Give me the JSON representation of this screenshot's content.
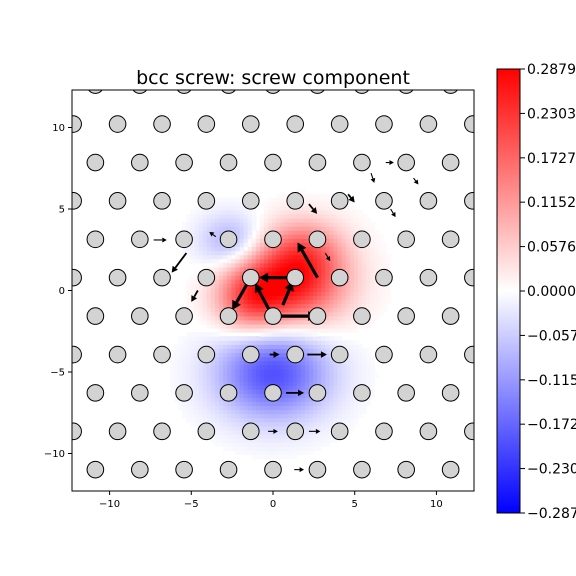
{
  "chart_data": {
    "type": "heatmap",
    "title": "bcc screw: screw component",
    "xlabel": "",
    "ylabel": "",
    "xlim": [
      -12.3,
      12.3
    ],
    "ylim": [
      -12.3,
      12.3
    ],
    "xticks": [
      -10,
      -5,
      0,
      5,
      10
    ],
    "yticks": [
      -10,
      -5,
      0,
      5,
      10
    ],
    "xtick_labels": [
      "−10",
      "−5",
      "0",
      "5",
      "10"
    ],
    "ytick_labels": [
      "−10",
      "−5",
      "0",
      "5",
      "10"
    ],
    "grid": false,
    "colormap": {
      "name": "bwr",
      "min": -0.2879,
      "max": 0.2879,
      "low_color": "#0000ff",
      "mid_color": "#ffffff",
      "high_color": "#ff0000"
    },
    "colorbar_ticks": [
      0.2879,
      0.2303,
      0.1727,
      0.1152,
      0.0576,
      0.0,
      -0.0576,
      -0.1152,
      -0.1727,
      -0.2303,
      -0.2879
    ],
    "colorbar_labels": [
      "0.2879",
      "0.2303",
      "0.1727",
      "0.1152",
      "0.0576",
      "0.0000",
      "−0.0576",
      "−0.1152",
      "−0.1727",
      "−0.2303",
      "−0.2879"
    ],
    "field_lobes": [
      {
        "x": 1.3,
        "y": 0.6,
        "amplitude": 0.25,
        "sigma_x": 2.2,
        "sigma_y": 1.9
      },
      {
        "x": -1.4,
        "y": -0.5,
        "amplitude": 0.17,
        "sigma_x": 1.5,
        "sigma_y": 1.5
      },
      {
        "x": 0.0,
        "y": -5.0,
        "amplitude": -0.2,
        "sigma_x": 2.4,
        "sigma_y": 2.0
      },
      {
        "x": -2.5,
        "y": 3.0,
        "amplitude": -0.1,
        "sigma_x": 1.4,
        "sigma_y": 1.2
      },
      {
        "x": 2.0,
        "y": 2.6,
        "amplitude": 0.08,
        "sigma_x": 1.6,
        "sigma_y": 1.3
      }
    ],
    "atoms": {
      "marker": "circle",
      "fill": "#d3d3d3",
      "edge": "#000000",
      "rows": [
        {
          "y": 12.6,
          "x": [
            -10.87,
            -8.15,
            -5.44,
            -2.72,
            0.0,
            2.72,
            5.44,
            8.15,
            10.87
          ]
        },
        {
          "y": 10.21,
          "x": [
            -12.23,
            -9.51,
            -6.79,
            -4.08,
            -1.36,
            1.36,
            4.08,
            6.79,
            9.51,
            12.23
          ]
        },
        {
          "y": 7.85,
          "x": [
            -10.87,
            -8.15,
            -5.44,
            -2.72,
            0.0,
            2.72,
            5.44,
            8.15,
            10.87
          ]
        },
        {
          "y": 5.5,
          "x": [
            -12.23,
            -9.51,
            -6.79,
            -4.08,
            -1.36,
            1.36,
            4.08,
            6.79,
            9.51,
            12.23
          ]
        },
        {
          "y": 3.14,
          "x": [
            -10.87,
            -8.15,
            -5.44,
            -2.72,
            0.0,
            2.72,
            5.44,
            8.15,
            10.87
          ]
        },
        {
          "y": 0.79,
          "x": [
            -12.23,
            -9.51,
            -6.79,
            -4.08,
            -1.36,
            1.36,
            4.08,
            6.79,
            9.51,
            12.23
          ]
        },
        {
          "y": -1.57,
          "x": [
            -10.87,
            -8.15,
            -5.44,
            -2.72,
            0.0,
            2.72,
            5.44,
            8.15,
            10.87
          ]
        },
        {
          "y": -3.93,
          "x": [
            -12.23,
            -9.51,
            -6.79,
            -4.08,
            -1.36,
            1.36,
            4.08,
            6.79,
            9.51,
            12.23
          ]
        },
        {
          "y": -6.28,
          "x": [
            -10.87,
            -8.15,
            -5.44,
            -2.72,
            0.0,
            2.72,
            5.44,
            8.15,
            10.87
          ]
        },
        {
          "y": -8.64,
          "x": [
            -12.23,
            -9.51,
            -6.79,
            -4.08,
            -1.36,
            1.36,
            4.08,
            6.79,
            9.51,
            12.23
          ]
        },
        {
          "y": -10.99,
          "x": [
            -10.87,
            -8.15,
            -5.44,
            -2.72,
            0.0,
            2.72,
            5.44,
            8.15,
            10.87
          ]
        }
      ]
    },
    "arrows": [
      {
        "x0": 0.0,
        "y0": -1.57,
        "x1": 2.7,
        "y1": -1.57,
        "weight": "heavy"
      },
      {
        "x0": 2.72,
        "y0": 0.79,
        "x1": 1.5,
        "y1": 2.95,
        "weight": "heavy"
      },
      {
        "x0": 1.36,
        "y0": 0.79,
        "x1": -0.85,
        "y1": 0.79,
        "weight": "heavy"
      },
      {
        "x0": -1.36,
        "y0": 0.79,
        "x1": -2.5,
        "y1": -1.2,
        "weight": "heavy"
      },
      {
        "x0": -0.1,
        "y0": -1.45,
        "x1": -1.1,
        "y1": 0.45,
        "weight": "heavy"
      },
      {
        "x0": 0.6,
        "y0": -0.9,
        "x1": 1.2,
        "y1": 0.55,
        "weight": "heavy"
      },
      {
        "x0": 2.2,
        "y0": 5.3,
        "x1": 2.7,
        "y1": 4.7,
        "weight": "medium"
      },
      {
        "x0": 4.6,
        "y0": 5.9,
        "x1": 5.0,
        "y1": 5.4,
        "weight": "medium"
      },
      {
        "x0": -5.3,
        "y0": 2.3,
        "x1": -6.2,
        "y1": 1.1,
        "weight": "medium"
      },
      {
        "x0": -4.6,
        "y0": 0.0,
        "x1": -5.0,
        "y1": -0.7,
        "weight": "medium"
      },
      {
        "x0": -7.3,
        "y0": 3.1,
        "x1": -6.5,
        "y1": 3.1,
        "weight": "light"
      },
      {
        "x0": -0.2,
        "y0": -3.93,
        "x1": 0.4,
        "y1": -3.93,
        "weight": "medium"
      },
      {
        "x0": 2.1,
        "y0": -3.93,
        "x1": 3.3,
        "y1": -3.93,
        "weight": "medium"
      },
      {
        "x0": 0.8,
        "y0": -6.28,
        "x1": 1.9,
        "y1": -6.28,
        "weight": "medium"
      },
      {
        "x0": 2.2,
        "y0": -8.64,
        "x1": 2.9,
        "y1": -8.64,
        "weight": "light"
      },
      {
        "x0": -0.3,
        "y0": -8.64,
        "x1": 0.3,
        "y1": -8.64,
        "weight": "light"
      },
      {
        "x0": 1.3,
        "y0": -10.99,
        "x1": 1.9,
        "y1": -10.99,
        "weight": "light"
      },
      {
        "x0": 6.0,
        "y0": 7.2,
        "x1": 6.2,
        "y1": 6.6,
        "weight": "light"
      },
      {
        "x0": 8.6,
        "y0": 6.9,
        "x1": 8.9,
        "y1": 6.5,
        "weight": "light"
      },
      {
        "x0": 6.9,
        "y0": 7.85,
        "x1": 7.4,
        "y1": 7.85,
        "weight": "light"
      },
      {
        "x0": -10.0,
        "y0": 5.5,
        "x1": -9.5,
        "y1": 5.5,
        "weight": "light"
      },
      {
        "x0": -3.5,
        "y0": 3.3,
        "x1": -3.9,
        "y1": 3.6,
        "weight": "light"
      },
      {
        "x0": 3.2,
        "y0": 2.3,
        "x1": 3.5,
        "y1": 1.8,
        "weight": "light"
      },
      {
        "x0": 7.2,
        "y0": 5.0,
        "x1": 7.5,
        "y1": 4.5,
        "weight": "light"
      }
    ]
  }
}
